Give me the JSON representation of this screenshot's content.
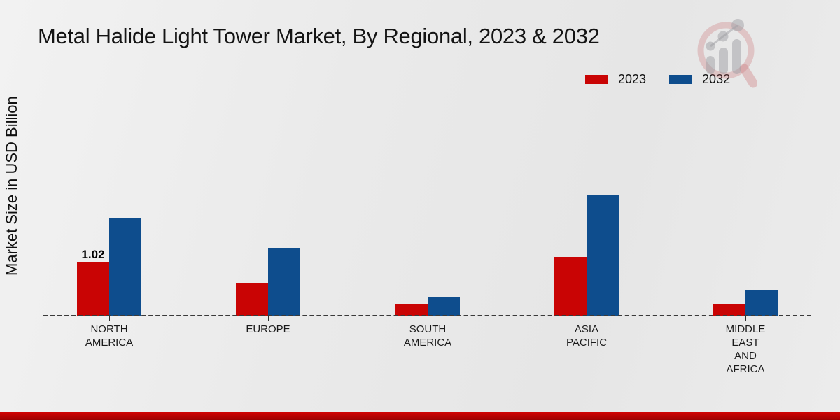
{
  "title": "Metal Halide Light Tower Market, By Regional, 2023 & 2032",
  "y_axis_label": "Market Size in USD Billion",
  "legend": [
    {
      "label": "2023",
      "color": "#c90404"
    },
    {
      "label": "2032",
      "color": "#0e4d8d"
    }
  ],
  "watermark_icon": "magnifier-growth-chart-logo",
  "colors": {
    "series_2023": "#c90404",
    "series_2032": "#0e4d8d",
    "background": "#e9e9e9",
    "bottom_strip": "#c00000",
    "axis": "#3a3a3a",
    "text": "#141414"
  },
  "chart_data": {
    "type": "bar",
    "title": "Metal Halide Light Tower Market, By Regional, 2023 & 2032",
    "ylabel": "Market Size in USD Billion",
    "xlabel": "",
    "categories": [
      "NORTH AMERICA",
      "EUROPE",
      "SOUTH AMERICA",
      "ASIA PACIFIC",
      "MIDDLE EAST AND AFRICA"
    ],
    "category_lines": [
      [
        "NORTH",
        "AMERICA"
      ],
      [
        "EUROPE"
      ],
      [
        "SOUTH",
        "AMERICA"
      ],
      [
        "ASIA",
        "PACIFIC"
      ],
      [
        "MIDDLE",
        "EAST",
        "AND",
        "AFRICA"
      ]
    ],
    "series": [
      {
        "name": "2023",
        "color": "#c90404",
        "values": [
          1.02,
          0.63,
          0.23,
          1.12,
          0.23
        ]
      },
      {
        "name": "2032",
        "color": "#0e4d8d",
        "values": [
          1.87,
          1.28,
          0.37,
          2.3,
          0.49
        ]
      }
    ],
    "data_labels": [
      {
        "series": "2023",
        "category": "NORTH AMERICA",
        "text": "1.02"
      }
    ],
    "bar_value_unit": "USD Billion",
    "ylim": [
      0,
      2.6
    ],
    "grid": false,
    "legend_position": "top-right",
    "baseline_style": "dashed"
  }
}
